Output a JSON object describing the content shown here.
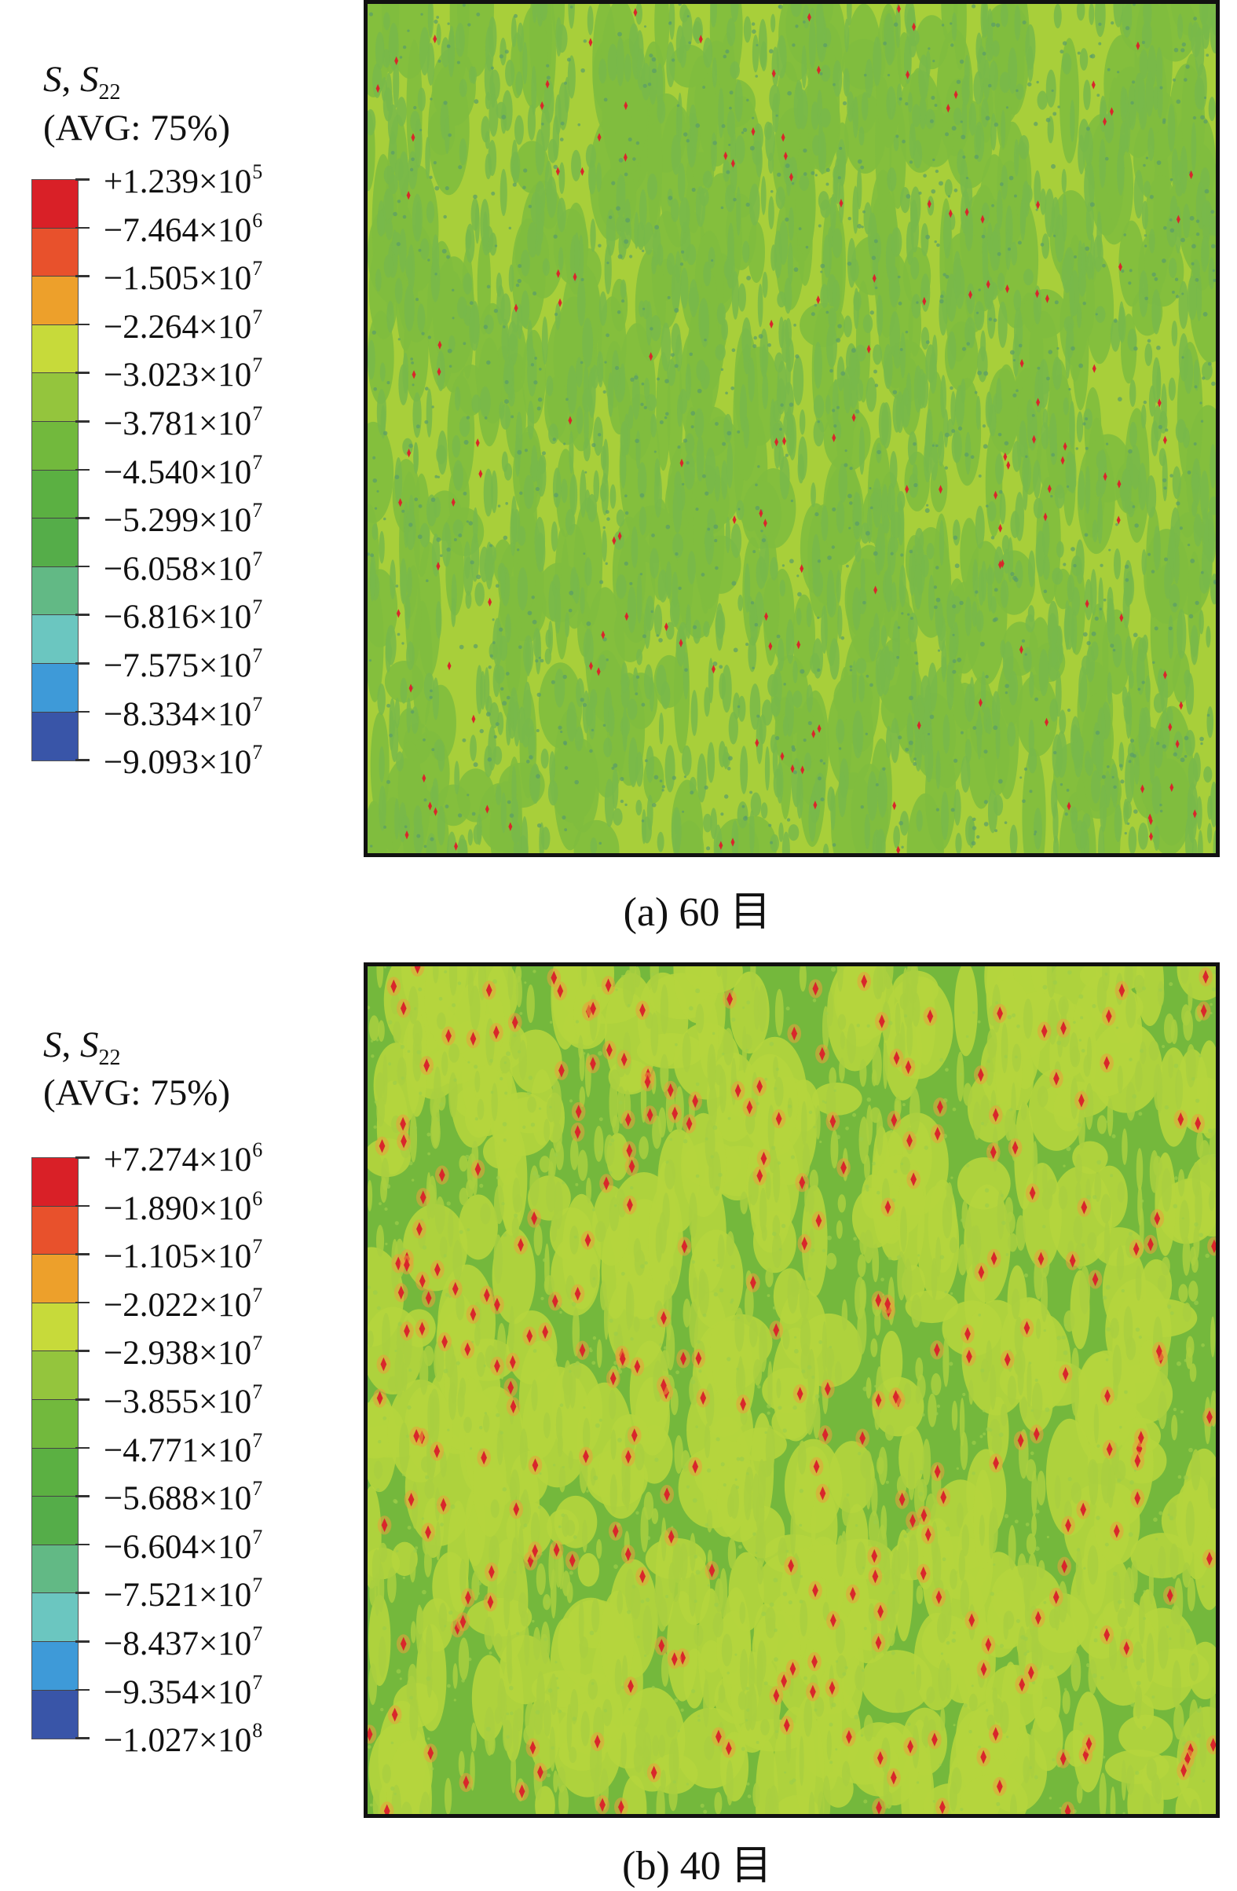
{
  "panels": [
    {
      "legend": {
        "var": "S",
        "comp_base": "S",
        "comp_sub": "22",
        "avg": "(AVG: 75%)",
        "levels": [
          {
            "mant": "+1.239×10",
            "exp": "5"
          },
          {
            "mant": "−7.464×10",
            "exp": "6"
          },
          {
            "mant": "−1.505×10",
            "exp": "7"
          },
          {
            "mant": "−2.264×10",
            "exp": "7"
          },
          {
            "mant": "−3.023×10",
            "exp": "7"
          },
          {
            "mant": "−3.781×10",
            "exp": "7"
          },
          {
            "mant": "−4.540×10",
            "exp": "7"
          },
          {
            "mant": "−5.299×10",
            "exp": "7"
          },
          {
            "mant": "−6.058×10",
            "exp": "7"
          },
          {
            "mant": "−6.816×10",
            "exp": "7"
          },
          {
            "mant": "−7.575×10",
            "exp": "7"
          },
          {
            "mant": "−8.334×10",
            "exp": "7"
          },
          {
            "mant": "−9.093×10",
            "exp": "7"
          }
        ]
      },
      "caption": "(a) 60 目"
    },
    {
      "legend": {
        "var": "S",
        "comp_base": "S",
        "comp_sub": "22",
        "avg": "(AVG: 75%)",
        "levels": [
          {
            "mant": "+7.274×10",
            "exp": "6"
          },
          {
            "mant": "−1.890×10",
            "exp": "6"
          },
          {
            "mant": "−1.105×10",
            "exp": "7"
          },
          {
            "mant": "−2.022×10",
            "exp": "7"
          },
          {
            "mant": "−2.938×10",
            "exp": "7"
          },
          {
            "mant": "−3.855×10",
            "exp": "7"
          },
          {
            "mant": "−4.771×10",
            "exp": "7"
          },
          {
            "mant": "−5.688×10",
            "exp": "7"
          },
          {
            "mant": "−6.604×10",
            "exp": "7"
          },
          {
            "mant": "−7.521×10",
            "exp": "7"
          },
          {
            "mant": "−8.437×10",
            "exp": "7"
          },
          {
            "mant": "−9.354×10",
            "exp": "7"
          },
          {
            "mant": "−1.027×10",
            "exp": "8"
          }
        ]
      },
      "caption": "(b) 40 目"
    }
  ],
  "colormap": [
    "#d92027",
    "#e8512c",
    "#eda02b",
    "#c7da3a",
    "#94c53d",
    "#72b93d",
    "#5bb042",
    "#55ad49",
    "#62b985",
    "#6bc6c0",
    "#3e9ad8",
    "#3955a8",
    "#2e3f99"
  ]
}
